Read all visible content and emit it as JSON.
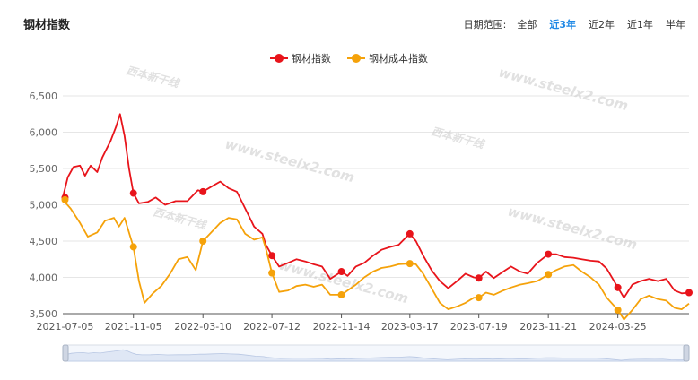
{
  "title": "钢材指数",
  "range": {
    "label": "日期范围:",
    "options": [
      "全部",
      "近3年",
      "近2年",
      "近1年",
      "半年"
    ],
    "active": "近3年"
  },
  "watermarks": [
    "www.steelx2.com",
    "西本新干线"
  ],
  "colors": {
    "steel": "#e8141b",
    "cost": "#f5a20a",
    "grid": "#e6e6e6",
    "axis": "#555555"
  },
  "chart_data": {
    "type": "line",
    "ylim": [
      3500,
      6500
    ],
    "yticks": [
      "3,500",
      "4,000",
      "4,500",
      "5,000",
      "5,500",
      "6,000",
      "6,500"
    ],
    "x_range": [
      "2021-07-01",
      "2024-07-31"
    ],
    "xticks": [
      "2021-07-05",
      "2021-11-05",
      "2022-03-10",
      "2022-07-12",
      "2022-11-14",
      "2023-03-17",
      "2023-07-19",
      "2023-11-21",
      "2024-03-25"
    ],
    "grid": true,
    "legend_position": "top-center",
    "series": [
      {
        "name": "钢材指数",
        "color": "#e8141b",
        "points": [
          [
            "2021-07-01",
            5100
          ],
          [
            "2021-07-10",
            5380
          ],
          [
            "2021-07-20",
            5520
          ],
          [
            "2021-08-01",
            5540
          ],
          [
            "2021-08-10",
            5400
          ],
          [
            "2021-08-20",
            5540
          ],
          [
            "2021-09-01",
            5450
          ],
          [
            "2021-09-10",
            5650
          ],
          [
            "2021-09-25",
            5880
          ],
          [
            "2021-10-05",
            6080
          ],
          [
            "2021-10-12",
            6250
          ],
          [
            "2021-10-20",
            5950
          ],
          [
            "2021-10-28",
            5500
          ],
          [
            "2021-11-05",
            5160
          ],
          [
            "2021-11-15",
            5020
          ],
          [
            "2021-12-01",
            5040
          ],
          [
            "2021-12-15",
            5100
          ],
          [
            "2022-01-01",
            5000
          ],
          [
            "2022-01-20",
            5050
          ],
          [
            "2022-02-10",
            5050
          ],
          [
            "2022-03-01",
            5200
          ],
          [
            "2022-03-10",
            5180
          ],
          [
            "2022-03-25",
            5250
          ],
          [
            "2022-04-10",
            5320
          ],
          [
            "2022-04-25",
            5230
          ],
          [
            "2022-05-10",
            5180
          ],
          [
            "2022-05-25",
            4950
          ],
          [
            "2022-06-10",
            4700
          ],
          [
            "2022-06-25",
            4600
          ],
          [
            "2022-07-01",
            4450
          ],
          [
            "2022-07-12",
            4300
          ],
          [
            "2022-07-25",
            4150
          ],
          [
            "2022-08-10",
            4200
          ],
          [
            "2022-08-25",
            4250
          ],
          [
            "2022-09-10",
            4220
          ],
          [
            "2022-09-25",
            4180
          ],
          [
            "2022-10-10",
            4150
          ],
          [
            "2022-10-25",
            3980
          ],
          [
            "2022-11-14",
            4080
          ],
          [
            "2022-11-25",
            4020
          ],
          [
            "2022-12-10",
            4150
          ],
          [
            "2022-12-25",
            4200
          ],
          [
            "2023-01-10",
            4300
          ],
          [
            "2023-01-25",
            4380
          ],
          [
            "2023-02-10",
            4420
          ],
          [
            "2023-02-25",
            4450
          ],
          [
            "2023-03-10",
            4550
          ],
          [
            "2023-03-17",
            4600
          ],
          [
            "2023-03-28",
            4500
          ],
          [
            "2023-04-10",
            4300
          ],
          [
            "2023-04-25",
            4100
          ],
          [
            "2023-05-10",
            3950
          ],
          [
            "2023-05-25",
            3850
          ],
          [
            "2023-06-10",
            3950
          ],
          [
            "2023-06-25",
            4050
          ],
          [
            "2023-07-10",
            4000
          ],
          [
            "2023-07-19",
            3990
          ],
          [
            "2023-08-01",
            4080
          ],
          [
            "2023-08-15",
            3990
          ],
          [
            "2023-09-01",
            4080
          ],
          [
            "2023-09-15",
            4150
          ],
          [
            "2023-10-01",
            4080
          ],
          [
            "2023-10-15",
            4050
          ],
          [
            "2023-11-01",
            4200
          ],
          [
            "2023-11-21",
            4320
          ],
          [
            "2023-12-05",
            4320
          ],
          [
            "2023-12-20",
            4280
          ],
          [
            "2024-01-05",
            4270
          ],
          [
            "2024-01-20",
            4250
          ],
          [
            "2024-02-05",
            4230
          ],
          [
            "2024-02-20",
            4220
          ],
          [
            "2024-03-05",
            4120
          ],
          [
            "2024-03-25",
            3860
          ],
          [
            "2024-04-05",
            3720
          ],
          [
            "2024-04-20",
            3900
          ],
          [
            "2024-05-05",
            3950
          ],
          [
            "2024-05-20",
            3980
          ],
          [
            "2024-06-05",
            3950
          ],
          [
            "2024-06-20",
            3980
          ],
          [
            "2024-07-05",
            3820
          ],
          [
            "2024-07-18",
            3780
          ],
          [
            "2024-07-31",
            3790
          ]
        ],
        "markers": [
          [
            "2021-07-05",
            5100
          ],
          [
            "2021-11-05",
            5160
          ],
          [
            "2022-03-10",
            5180
          ],
          [
            "2022-07-12",
            4300
          ],
          [
            "2022-11-14",
            4080
          ],
          [
            "2023-03-17",
            4600
          ],
          [
            "2023-07-19",
            3990
          ],
          [
            "2023-11-21",
            4320
          ],
          [
            "2024-03-25",
            3860
          ],
          [
            "2024-07-31",
            3790
          ]
        ]
      },
      {
        "name": "钢材成本指数",
        "color": "#f5a20a",
        "points": [
          [
            "2021-07-01",
            5070
          ],
          [
            "2021-07-15",
            4950
          ],
          [
            "2021-08-01",
            4750
          ],
          [
            "2021-08-15",
            4560
          ],
          [
            "2021-09-01",
            4620
          ],
          [
            "2021-09-15",
            4780
          ],
          [
            "2021-10-01",
            4820
          ],
          [
            "2021-10-10",
            4700
          ],
          [
            "2021-10-20",
            4820
          ],
          [
            "2021-11-05",
            4420
          ],
          [
            "2021-11-15",
            3950
          ],
          [
            "2021-11-25",
            3650
          ],
          [
            "2021-12-10",
            3780
          ],
          [
            "2021-12-25",
            3880
          ],
          [
            "2022-01-10",
            4050
          ],
          [
            "2022-01-25",
            4250
          ],
          [
            "2022-02-10",
            4280
          ],
          [
            "2022-02-25",
            4100
          ],
          [
            "2022-03-10",
            4500
          ],
          [
            "2022-03-25",
            4620
          ],
          [
            "2022-04-10",
            4750
          ],
          [
            "2022-04-25",
            4820
          ],
          [
            "2022-05-10",
            4800
          ],
          [
            "2022-05-25",
            4600
          ],
          [
            "2022-06-10",
            4520
          ],
          [
            "2022-06-25",
            4550
          ],
          [
            "2022-07-01",
            4400
          ],
          [
            "2022-07-12",
            4060
          ],
          [
            "2022-07-25",
            3800
          ],
          [
            "2022-08-10",
            3820
          ],
          [
            "2022-08-25",
            3880
          ],
          [
            "2022-09-10",
            3900
          ],
          [
            "2022-09-25",
            3870
          ],
          [
            "2022-10-10",
            3900
          ],
          [
            "2022-10-25",
            3760
          ],
          [
            "2022-11-14",
            3760
          ],
          [
            "2022-11-25",
            3820
          ],
          [
            "2022-12-10",
            3900
          ],
          [
            "2022-12-25",
            4000
          ],
          [
            "2023-01-10",
            4080
          ],
          [
            "2023-01-25",
            4130
          ],
          [
            "2023-02-10",
            4150
          ],
          [
            "2023-02-25",
            4180
          ],
          [
            "2023-03-17",
            4190
          ],
          [
            "2023-03-28",
            4180
          ],
          [
            "2023-04-10",
            4050
          ],
          [
            "2023-04-25",
            3850
          ],
          [
            "2023-05-10",
            3650
          ],
          [
            "2023-05-25",
            3560
          ],
          [
            "2023-06-10",
            3600
          ],
          [
            "2023-06-25",
            3650
          ],
          [
            "2023-07-10",
            3720
          ],
          [
            "2023-07-19",
            3720
          ],
          [
            "2023-08-01",
            3790
          ],
          [
            "2023-08-15",
            3760
          ],
          [
            "2023-09-01",
            3820
          ],
          [
            "2023-09-15",
            3860
          ],
          [
            "2023-10-01",
            3900
          ],
          [
            "2023-10-15",
            3920
          ],
          [
            "2023-11-01",
            3950
          ],
          [
            "2023-11-21",
            4040
          ],
          [
            "2023-12-05",
            4100
          ],
          [
            "2023-12-20",
            4150
          ],
          [
            "2024-01-05",
            4170
          ],
          [
            "2024-01-20",
            4080
          ],
          [
            "2024-02-05",
            4000
          ],
          [
            "2024-02-20",
            3900
          ],
          [
            "2024-03-05",
            3720
          ],
          [
            "2024-03-25",
            3550
          ],
          [
            "2024-04-05",
            3420
          ],
          [
            "2024-04-20",
            3550
          ],
          [
            "2024-05-05",
            3700
          ],
          [
            "2024-05-20",
            3750
          ],
          [
            "2024-06-05",
            3700
          ],
          [
            "2024-06-20",
            3680
          ],
          [
            "2024-07-05",
            3580
          ],
          [
            "2024-07-18",
            3560
          ],
          [
            "2024-07-31",
            3640
          ]
        ],
        "markers": [
          [
            "2021-07-05",
            5070
          ],
          [
            "2021-11-05",
            4420
          ],
          [
            "2022-03-10",
            4500
          ],
          [
            "2022-07-12",
            4060
          ],
          [
            "2022-11-14",
            3760
          ],
          [
            "2023-03-17",
            4190
          ],
          [
            "2023-07-19",
            3720
          ],
          [
            "2023-11-21",
            4040
          ],
          [
            "2024-03-25",
            3550
          ]
        ]
      }
    ]
  }
}
